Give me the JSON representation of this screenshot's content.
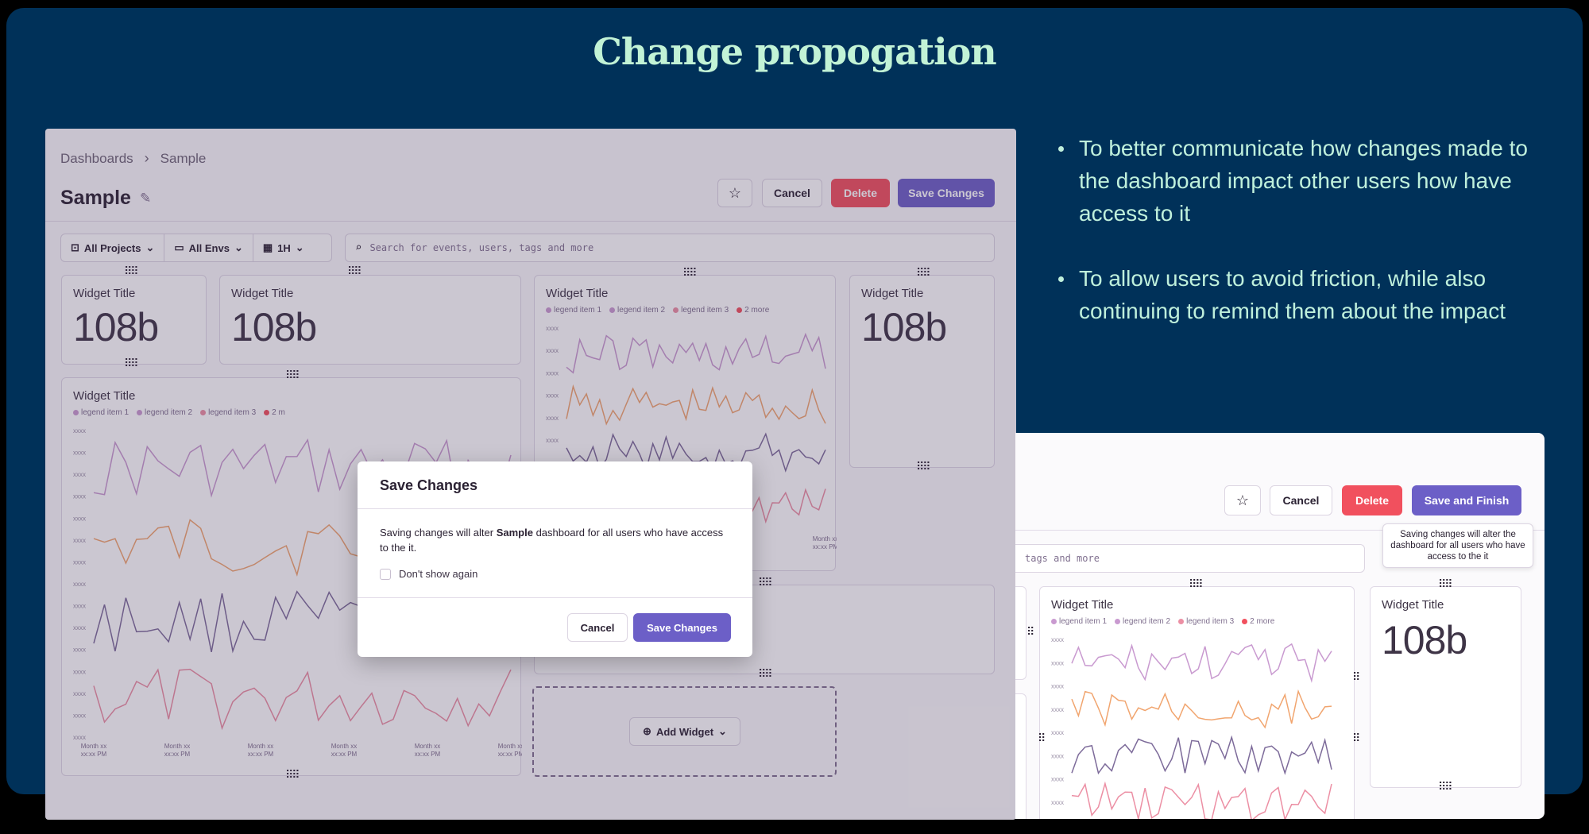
{
  "slide": {
    "title": "Change propogation",
    "bullets": [
      "To better communicate how changes made to the dashboard impact other users how have access to it",
      "To allow users to avoid friction, while also continuing to remind them about the impact"
    ]
  },
  "dashboard": {
    "breadcrumb": [
      "Dashboards",
      "Sample"
    ],
    "title": "Sample",
    "buttons": {
      "cancel": "Cancel",
      "delete": "Delete",
      "save": "Save Changes"
    },
    "filters": {
      "projects": "All Projects",
      "envs": "All Envs",
      "period": "1H"
    },
    "search_placeholder": "Search for events, users, tags and more",
    "widget_title": "Widget Title",
    "big_value": "108b",
    "legend": [
      "legend item 1",
      "legend item 2",
      "legend item 3",
      "2 more"
    ],
    "legend_short": [
      "legend item 1",
      "legend item 2",
      "legend item 3",
      "2 m"
    ],
    "y_tick": "xxxx",
    "x_tick_top": "Month xx",
    "x_tick_bottom": "xx:xx PM",
    "add_widget": "Add Widget"
  },
  "modal": {
    "title": "Save Changes",
    "body_pre": "Saving changes will alter ",
    "body_bold": "Sample",
    "body_post": " dashboard for all users who have access to the it.",
    "checkbox_label": "Don't show again",
    "cancel": "Cancel",
    "save": "Save Changes"
  },
  "alt": {
    "buttons": {
      "cancel": "Cancel",
      "delete": "Delete",
      "save": "Save and Finish"
    },
    "tooltip": "Saving changes will alter the dashboard for all users who have access to the it",
    "search_fragment": "tags and more",
    "widget_title": "Widget Title",
    "big_value": "108b",
    "legend": [
      "legend item 1",
      "legend item 2",
      "legend item 3",
      "2 more"
    ],
    "y_tick": "xxxx"
  },
  "colors": {
    "background": "#003159",
    "headline": "#c2f3d6",
    "purple": "#6c5fc7",
    "red": "#f1505e",
    "series": [
      "#c99ad0",
      "#f1a56f",
      "#7d6b9a",
      "#ec8fa4"
    ]
  }
}
